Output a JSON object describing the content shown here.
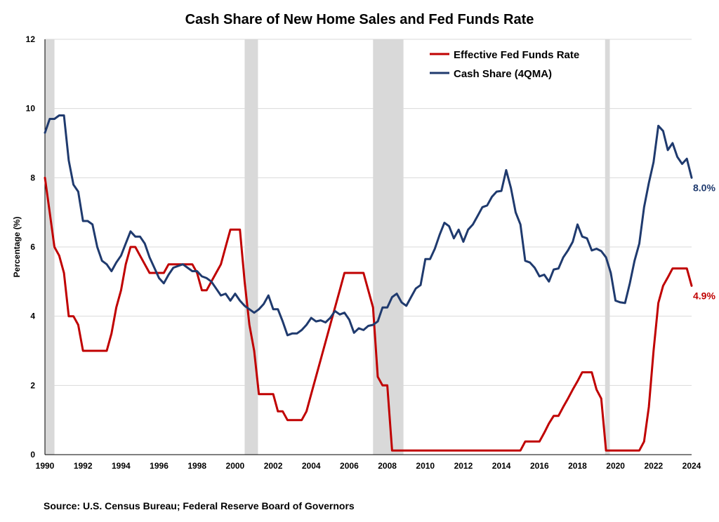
{
  "chart_data": {
    "type": "line",
    "title": "Cash Share of New Home Sales and Fed Funds Rate",
    "xlabel": "",
    "ylabel": "Percentage  (%)",
    "xlim": [
      1990,
      2024
    ],
    "ylim": [
      0,
      12
    ],
    "grid": true,
    "legend_position": "top-center",
    "x_ticks": [
      1990,
      1992,
      1994,
      1996,
      1998,
      2000,
      2002,
      2004,
      2006,
      2008,
      2010,
      2012,
      2014,
      2016,
      2018,
      2020,
      2022,
      2024
    ],
    "y_ticks": [
      0,
      2,
      4,
      6,
      8,
      10,
      12
    ],
    "recessions": [
      [
        1990.0,
        1990.5
      ],
      [
        2000.5,
        2001.2
      ],
      [
        2007.25,
        2008.85
      ],
      [
        2019.45,
        2019.7
      ]
    ],
    "series": [
      {
        "name": "Effective Fed Funds Rate",
        "color": "#c00000",
        "end_label": "4.9%",
        "points": [
          [
            1990.0,
            8.0
          ],
          [
            1990.25,
            7.0
          ],
          [
            1990.5,
            6.0
          ],
          [
            1990.75,
            5.75
          ],
          [
            1991.0,
            5.25
          ],
          [
            1991.25,
            4.0
          ],
          [
            1991.5,
            4.0
          ],
          [
            1991.75,
            3.75
          ],
          [
            1992.0,
            3.0
          ],
          [
            1992.5,
            3.0
          ],
          [
            1993.0,
            3.0
          ],
          [
            1993.25,
            3.0
          ],
          [
            1993.5,
            3.5
          ],
          [
            1993.75,
            4.25
          ],
          [
            1994.0,
            4.75
          ],
          [
            1994.25,
            5.5
          ],
          [
            1994.5,
            6.0
          ],
          [
            1994.75,
            6.0
          ],
          [
            1995.0,
            5.75
          ],
          [
            1995.5,
            5.25
          ],
          [
            1996.0,
            5.25
          ],
          [
            1996.25,
            5.25
          ],
          [
            1996.5,
            5.5
          ],
          [
            1997.0,
            5.5
          ],
          [
            1997.5,
            5.5
          ],
          [
            1997.75,
            5.5
          ],
          [
            1998.0,
            5.25
          ],
          [
            1998.25,
            4.75
          ],
          [
            1998.5,
            4.75
          ],
          [
            1998.75,
            5.0
          ],
          [
            1999.0,
            5.25
          ],
          [
            1999.25,
            5.5
          ],
          [
            1999.5,
            6.0
          ],
          [
            1999.75,
            6.5
          ],
          [
            2000.0,
            6.5
          ],
          [
            2000.25,
            6.5
          ],
          [
            2000.5,
            5.0
          ],
          [
            2000.75,
            3.75
          ],
          [
            2001.0,
            3.0
          ],
          [
            2001.25,
            1.75
          ],
          [
            2001.5,
            1.75
          ],
          [
            2001.75,
            1.75
          ],
          [
            2002.0,
            1.75
          ],
          [
            2002.25,
            1.25
          ],
          [
            2002.5,
            1.25
          ],
          [
            2002.75,
            1.0
          ],
          [
            2003.0,
            1.0
          ],
          [
            2003.5,
            1.0
          ],
          [
            2003.75,
            1.25
          ],
          [
            2004.0,
            1.75
          ],
          [
            2004.5,
            2.75
          ],
          [
            2005.0,
            3.75
          ],
          [
            2005.5,
            4.75
          ],
          [
            2005.75,
            5.25
          ],
          [
            2006.0,
            5.25
          ],
          [
            2006.5,
            5.25
          ],
          [
            2006.75,
            5.25
          ],
          [
            2007.0,
            4.75
          ],
          [
            2007.25,
            4.25
          ],
          [
            2007.5,
            2.25
          ],
          [
            2007.75,
            2.0
          ],
          [
            2008.0,
            2.0
          ],
          [
            2008.25,
            0.12
          ],
          [
            2009.0,
            0.12
          ],
          [
            2010.0,
            0.12
          ],
          [
            2011.0,
            0.12
          ],
          [
            2012.0,
            0.12
          ],
          [
            2013.0,
            0.12
          ],
          [
            2014.0,
            0.12
          ],
          [
            2015.0,
            0.12
          ],
          [
            2015.25,
            0.38
          ],
          [
            2015.5,
            0.38
          ],
          [
            2016.0,
            0.38
          ],
          [
            2016.25,
            0.63
          ],
          [
            2016.5,
            0.9
          ],
          [
            2016.75,
            1.12
          ],
          [
            2017.0,
            1.12
          ],
          [
            2017.25,
            1.38
          ],
          [
            2017.5,
            1.62
          ],
          [
            2017.75,
            1.88
          ],
          [
            2018.0,
            2.12
          ],
          [
            2018.25,
            2.38
          ],
          [
            2018.5,
            2.38
          ],
          [
            2018.75,
            2.38
          ],
          [
            2019.0,
            1.88
          ],
          [
            2019.25,
            1.62
          ],
          [
            2019.5,
            0.12
          ],
          [
            2020.0,
            0.12
          ],
          [
            2020.5,
            0.12
          ],
          [
            2021.0,
            0.12
          ],
          [
            2021.25,
            0.12
          ],
          [
            2021.5,
            0.38
          ],
          [
            2021.75,
            1.38
          ],
          [
            2022.0,
            3.0
          ],
          [
            2022.25,
            4.38
          ],
          [
            2022.5,
            4.88
          ],
          [
            2022.75,
            5.12
          ],
          [
            2023.0,
            5.38
          ],
          [
            2023.5,
            5.38
          ],
          [
            2023.75,
            5.38
          ],
          [
            2024.0,
            4.88
          ]
        ]
      },
      {
        "name": "Cash Share (4QMA)",
        "color": "#1f3a6e",
        "end_label": "8.0%",
        "points": [
          [
            1990.0,
            9.3
          ],
          [
            1990.25,
            9.7
          ],
          [
            1990.5,
            9.7
          ],
          [
            1990.75,
            9.8
          ],
          [
            1991.0,
            9.8
          ],
          [
            1991.25,
            8.5
          ],
          [
            1991.5,
            7.8
          ],
          [
            1991.75,
            7.6
          ],
          [
            1992.0,
            6.75
          ],
          [
            1992.25,
            6.75
          ],
          [
            1992.5,
            6.65
          ],
          [
            1992.75,
            6.0
          ],
          [
            1993.0,
            5.6
          ],
          [
            1993.25,
            5.5
          ],
          [
            1993.5,
            5.3
          ],
          [
            1993.75,
            5.55
          ],
          [
            1994.0,
            5.75
          ],
          [
            1994.25,
            6.1
          ],
          [
            1994.5,
            6.45
          ],
          [
            1994.75,
            6.3
          ],
          [
            1995.0,
            6.3
          ],
          [
            1995.25,
            6.1
          ],
          [
            1995.5,
            5.7
          ],
          [
            1995.75,
            5.4
          ],
          [
            1996.0,
            5.1
          ],
          [
            1996.25,
            4.95
          ],
          [
            1996.5,
            5.2
          ],
          [
            1996.75,
            5.4
          ],
          [
            1997.0,
            5.45
          ],
          [
            1997.25,
            5.5
          ],
          [
            1997.5,
            5.4
          ],
          [
            1997.75,
            5.3
          ],
          [
            1998.0,
            5.3
          ],
          [
            1998.25,
            5.15
          ],
          [
            1998.5,
            5.1
          ],
          [
            1998.75,
            5.0
          ],
          [
            1999.0,
            4.8
          ],
          [
            1999.25,
            4.6
          ],
          [
            1999.5,
            4.65
          ],
          [
            1999.75,
            4.45
          ],
          [
            2000.0,
            4.65
          ],
          [
            2000.25,
            4.45
          ],
          [
            2000.5,
            4.3
          ],
          [
            2000.75,
            4.2
          ],
          [
            2001.0,
            4.1
          ],
          [
            2001.25,
            4.2
          ],
          [
            2001.5,
            4.35
          ],
          [
            2001.75,
            4.6
          ],
          [
            2002.0,
            4.2
          ],
          [
            2002.25,
            4.2
          ],
          [
            2002.5,
            3.85
          ],
          [
            2002.75,
            3.45
          ],
          [
            2003.0,
            3.5
          ],
          [
            2003.25,
            3.5
          ],
          [
            2003.5,
            3.6
          ],
          [
            2003.75,
            3.75
          ],
          [
            2004.0,
            3.95
          ],
          [
            2004.25,
            3.85
          ],
          [
            2004.5,
            3.88
          ],
          [
            2004.75,
            3.82
          ],
          [
            2005.0,
            3.95
          ],
          [
            2005.25,
            4.15
          ],
          [
            2005.5,
            4.05
          ],
          [
            2005.75,
            4.1
          ],
          [
            2006.0,
            3.9
          ],
          [
            2006.25,
            3.52
          ],
          [
            2006.5,
            3.65
          ],
          [
            2006.75,
            3.6
          ],
          [
            2007.0,
            3.72
          ],
          [
            2007.25,
            3.75
          ],
          [
            2007.5,
            3.85
          ],
          [
            2007.75,
            4.25
          ],
          [
            2008.0,
            4.25
          ],
          [
            2008.25,
            4.55
          ],
          [
            2008.5,
            4.65
          ],
          [
            2008.75,
            4.4
          ],
          [
            2009.0,
            4.3
          ],
          [
            2009.25,
            4.55
          ],
          [
            2009.5,
            4.8
          ],
          [
            2009.75,
            4.9
          ],
          [
            2010.0,
            5.65
          ],
          [
            2010.25,
            5.65
          ],
          [
            2010.5,
            5.95
          ],
          [
            2010.75,
            6.35
          ],
          [
            2011.0,
            6.7
          ],
          [
            2011.25,
            6.6
          ],
          [
            2011.5,
            6.25
          ],
          [
            2011.75,
            6.5
          ],
          [
            2012.0,
            6.15
          ],
          [
            2012.25,
            6.5
          ],
          [
            2012.5,
            6.65
          ],
          [
            2012.75,
            6.9
          ],
          [
            2013.0,
            7.15
          ],
          [
            2013.25,
            7.2
          ],
          [
            2013.5,
            7.45
          ],
          [
            2013.75,
            7.6
          ],
          [
            2014.0,
            7.62
          ],
          [
            2014.25,
            8.22
          ],
          [
            2014.5,
            7.7
          ],
          [
            2014.75,
            7.0
          ],
          [
            2015.0,
            6.65
          ],
          [
            2015.25,
            5.6
          ],
          [
            2015.5,
            5.55
          ],
          [
            2015.75,
            5.4
          ],
          [
            2016.0,
            5.15
          ],
          [
            2016.25,
            5.2
          ],
          [
            2016.5,
            5.0
          ],
          [
            2016.75,
            5.35
          ],
          [
            2017.0,
            5.38
          ],
          [
            2017.25,
            5.7
          ],
          [
            2017.5,
            5.9
          ],
          [
            2017.75,
            6.15
          ],
          [
            2018.0,
            6.65
          ],
          [
            2018.25,
            6.3
          ],
          [
            2018.5,
            6.25
          ],
          [
            2018.75,
            5.9
          ],
          [
            2019.0,
            5.95
          ],
          [
            2019.25,
            5.88
          ],
          [
            2019.5,
            5.7
          ],
          [
            2019.75,
            5.25
          ],
          [
            2020.0,
            4.45
          ],
          [
            2020.25,
            4.4
          ],
          [
            2020.5,
            4.38
          ],
          [
            2020.75,
            4.95
          ],
          [
            2021.0,
            5.6
          ],
          [
            2021.25,
            6.1
          ],
          [
            2021.5,
            7.15
          ],
          [
            2021.75,
            7.85
          ],
          [
            2022.0,
            8.45
          ],
          [
            2022.25,
            9.5
          ],
          [
            2022.5,
            9.35
          ],
          [
            2022.75,
            8.8
          ],
          [
            2023.0,
            9.0
          ],
          [
            2023.25,
            8.6
          ],
          [
            2023.5,
            8.4
          ],
          [
            2023.75,
            8.55
          ],
          [
            2024.0,
            8.0
          ]
        ]
      }
    ],
    "source": "Source: U.S. Census Bureau; Federal Reserve Board of Governors"
  }
}
